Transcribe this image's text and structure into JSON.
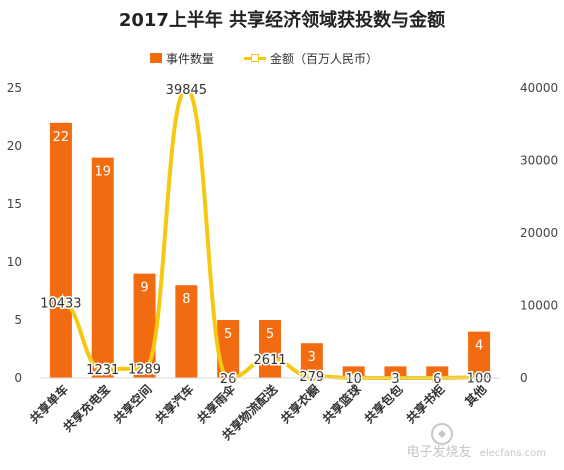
{
  "chart_data": {
    "type": "bar",
    "title": "2017上半年 共享经济领域获投数与金额",
    "categories": [
      "共享单车",
      "共享充电宝",
      "共享空间",
      "共享汽车",
      "共享雨伞",
      "共享物流配送",
      "共享衣橱",
      "共享篮球",
      "共享包包",
      "共享书柜",
      "其他"
    ],
    "series": [
      {
        "name": "事件数量",
        "type": "bar",
        "axis": "left",
        "color": "#f26b10",
        "values": [
          22,
          19,
          9,
          8,
          5,
          5,
          3,
          1,
          1,
          1,
          4
        ]
      },
      {
        "name": "金额（百万人民币）",
        "type": "line",
        "axis": "right",
        "color": "#f6c910",
        "values": [
          10433,
          1231,
          1289,
          39845,
          26,
          2611,
          279,
          10,
          3,
          6,
          100
        ]
      }
    ],
    "y_left": {
      "min": 0,
      "max": 25,
      "ticks": [
        0,
        5,
        10,
        15,
        20,
        25
      ]
    },
    "y_right": {
      "min": 0,
      "max": 40000,
      "ticks": [
        0,
        10000,
        20000,
        30000,
        40000
      ]
    },
    "grid": false,
    "legend_position": "top-center"
  },
  "watermark": {
    "text": "电子发烧友",
    "url_text": "elecfans.com"
  }
}
